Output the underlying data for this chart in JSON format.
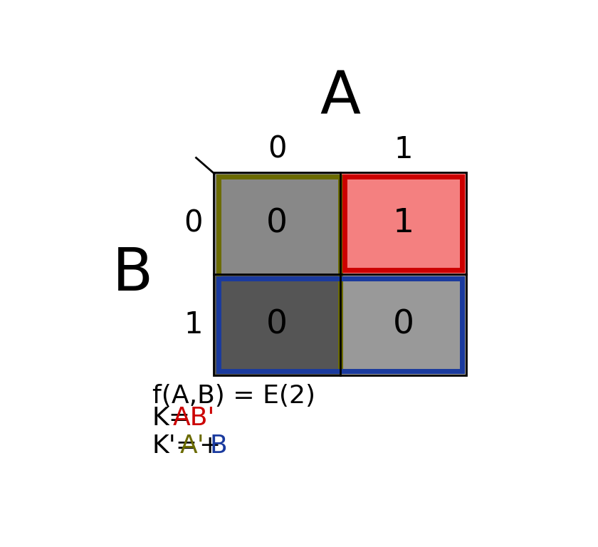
{
  "title_A": "A",
  "title_B": "B",
  "col_labels": [
    "0",
    "1"
  ],
  "row_labels": [
    "0",
    "1"
  ],
  "cell_values": [
    [
      0,
      1
    ],
    [
      0,
      0
    ]
  ],
  "cell_bg_colors": [
    [
      "#888888",
      "#f48080"
    ],
    [
      "#555555",
      "#999999"
    ]
  ],
  "outer_bg": "#ffffff",
  "olive_color": "#6b6b00",
  "red_color": "#cc0000",
  "blue_color": "#1a3a9e",
  "formula_line1": "f(A,B) = E(2)",
  "formula_line2_prefix": "K=",
  "formula_line2_colored": "AB'",
  "formula_line2_color": "#cc0000",
  "formula_line3_prefix": "K'=",
  "formula_line3_part1": "A'",
  "formula_line3_part1_color": "#6b6b00",
  "formula_line3_plus": "+",
  "formula_line3_part2": "B",
  "formula_line3_part2_color": "#1a3a9e",
  "font_size_title": 60,
  "font_size_labels": 30,
  "font_size_cells": 34,
  "font_size_formula": 26,
  "lw_olive": 5,
  "lw_red": 5,
  "lw_blue": 5,
  "lw_grid": 2
}
